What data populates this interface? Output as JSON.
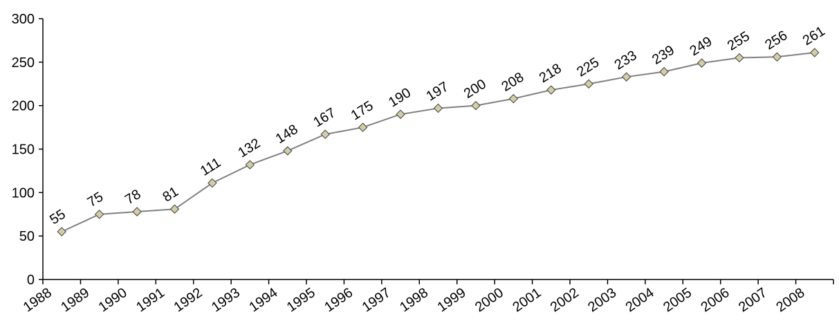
{
  "chart_data": {
    "type": "line",
    "title": "",
    "xlabel": "",
    "ylabel": "",
    "ylim": [
      0,
      300
    ],
    "yticks": [
      0,
      50,
      100,
      150,
      200,
      250,
      300
    ],
    "categories": [
      "1988",
      "1989",
      "1990",
      "1991",
      "1992",
      "1993",
      "1994",
      "1995",
      "1996",
      "1997",
      "1998",
      "1999",
      "2000",
      "2001",
      "2002",
      "2003",
      "2004",
      "2005",
      "2006",
      "2007",
      "2008"
    ],
    "series": [
      {
        "values": [
          55,
          75,
          78,
          81,
          111,
          132,
          148,
          167,
          175,
          190,
          197,
          200,
          208,
          218,
          225,
          233,
          239,
          249,
          255,
          256,
          261
        ]
      }
    ],
    "grid": false,
    "legend": "none",
    "line_color": "#808080",
    "marker_color": "#d4cfa3",
    "marker_shape": "diamond"
  }
}
